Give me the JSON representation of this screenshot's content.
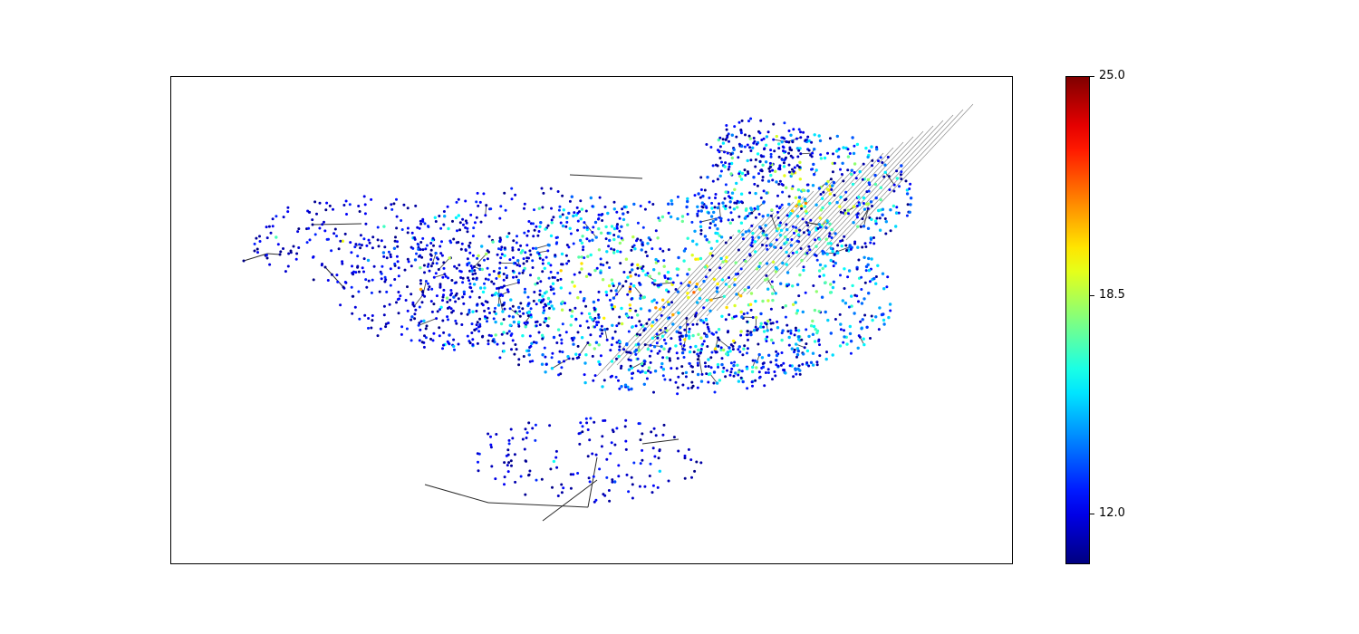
{
  "chart_data": {
    "type": "scatter",
    "description_kind": "network",
    "title": "",
    "xlabel": "",
    "ylabel": "",
    "colormap": "jet",
    "colorbar": {
      "vmin": 10.5,
      "vmax": 25.0,
      "ticks": [
        12.0,
        18.5,
        25.0
      ],
      "tick_labels": [
        "12.0",
        "18.5",
        "25.0"
      ]
    },
    "colors": {
      "edge": "#2b2b2b",
      "low_node": "#00008f"
    },
    "axes_visible": false
  }
}
